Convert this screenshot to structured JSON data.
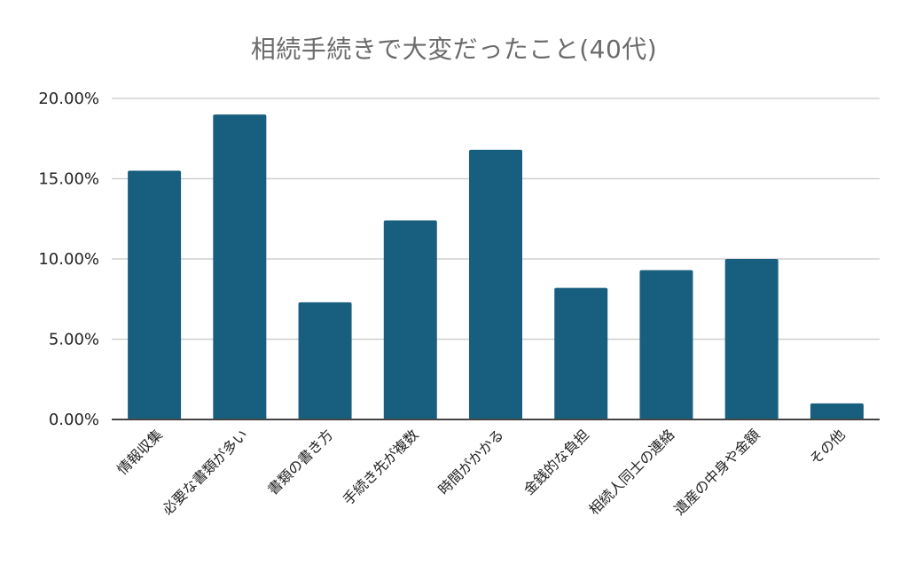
{
  "chart_data": {
    "type": "bar",
    "title": "相続手続きで大変だったこと(40代)",
    "xlabel": "",
    "ylabel": "",
    "ylim": [
      0,
      20
    ],
    "y_tick_values": [
      0,
      5,
      10,
      15,
      20
    ],
    "y_tick_labels": [
      "0.00%",
      "5.00%",
      "10.00%",
      "15.00%",
      "20.00%"
    ],
    "grid": true,
    "categories": [
      "情報収集",
      "必要な書類が多い",
      "書類の書き方",
      "手続き先が複数",
      "時間がかかる",
      "金銭的な負担",
      "相続人同士の連絡",
      "遺産の中身や金額",
      "その他"
    ],
    "values": [
      15.5,
      19.0,
      7.3,
      12.4,
      16.8,
      8.2,
      9.3,
      10.0,
      1.0
    ],
    "colors": {
      "bar": "#185f7f",
      "grid": "#d0d0d0",
      "axis": "#444444",
      "title": "#6b6b6b"
    }
  }
}
